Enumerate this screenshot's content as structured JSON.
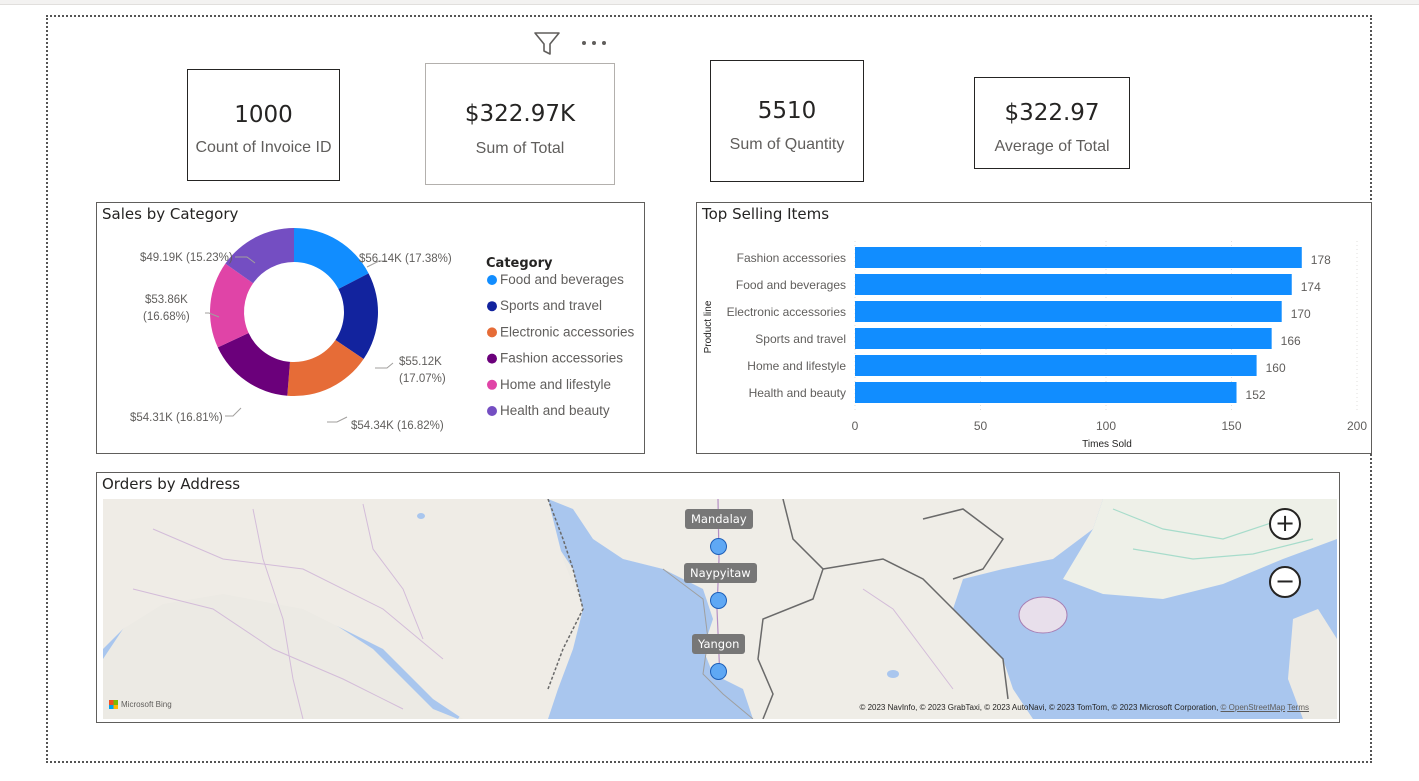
{
  "kpis": [
    {
      "value": "1000",
      "label": "Count of Invoice ID"
    },
    {
      "value": "$322.97K",
      "label": "Sum of Total"
    },
    {
      "value": "5510",
      "label": "Sum of Quantity"
    },
    {
      "value": "$322.97",
      "label": "Average of Total"
    }
  ],
  "toolbar": {
    "filter_icon": "filter-icon",
    "more_icon": "more-options-icon"
  },
  "donut": {
    "title": "Sales by Category",
    "legend_title": "Category",
    "slices": [
      {
        "name": "Food and beverages",
        "value": 56.14,
        "label": "$56.14K (17.38%)",
        "color": "#118DFF"
      },
      {
        "name": "Sports and travel",
        "value": 55.12,
        "label_line1": "$55.12K",
        "label_line2": "(17.07%)",
        "color": "#12239E"
      },
      {
        "name": "Electronic accessories",
        "value": 54.34,
        "label": "$54.34K (16.82%)",
        "color": "#E66C37"
      },
      {
        "name": "Fashion accessories",
        "value": 54.31,
        "label": "$54.31K (16.81%)",
        "color": "#6B007B"
      },
      {
        "name": "Home and lifestyle",
        "value": 53.86,
        "label_line1": "$53.86K",
        "label_line2": "(16.68%)",
        "color": "#E044A7"
      },
      {
        "name": "Health and beauty",
        "value": 49.19,
        "label": "$49.19K (15.23%)",
        "color": "#744EC2"
      }
    ]
  },
  "chart_data": {
    "type": "bar",
    "orientation": "horizontal",
    "title": "Top Selling Items",
    "xlabel": "Times Sold",
    "ylabel": "Product line",
    "categories": [
      "Fashion accessories",
      "Food and beverages",
      "Electronic accessories",
      "Sports and travel",
      "Home and lifestyle",
      "Health and beauty"
    ],
    "values": [
      178,
      174,
      170,
      166,
      160,
      152
    ],
    "xlim": [
      0,
      200
    ],
    "xticks": [
      "0",
      "50",
      "100",
      "150",
      "200"
    ],
    "color": "#118DFF",
    "grid": true
  },
  "map": {
    "title": "Orders by Address",
    "cities": [
      "Mandalay",
      "Naypyitaw",
      "Yangon"
    ],
    "zoom_in": "+",
    "zoom_out": "−",
    "bing_label": "Microsoft Bing",
    "copyright": "© 2023 NavInfo, © 2023 GrabTaxi, © 2023 AutoNavi, © 2023 TomTom, © 2023 Microsoft Corporation,",
    "osm_link": "© OpenStreetMap",
    "terms_link": "Terms"
  }
}
